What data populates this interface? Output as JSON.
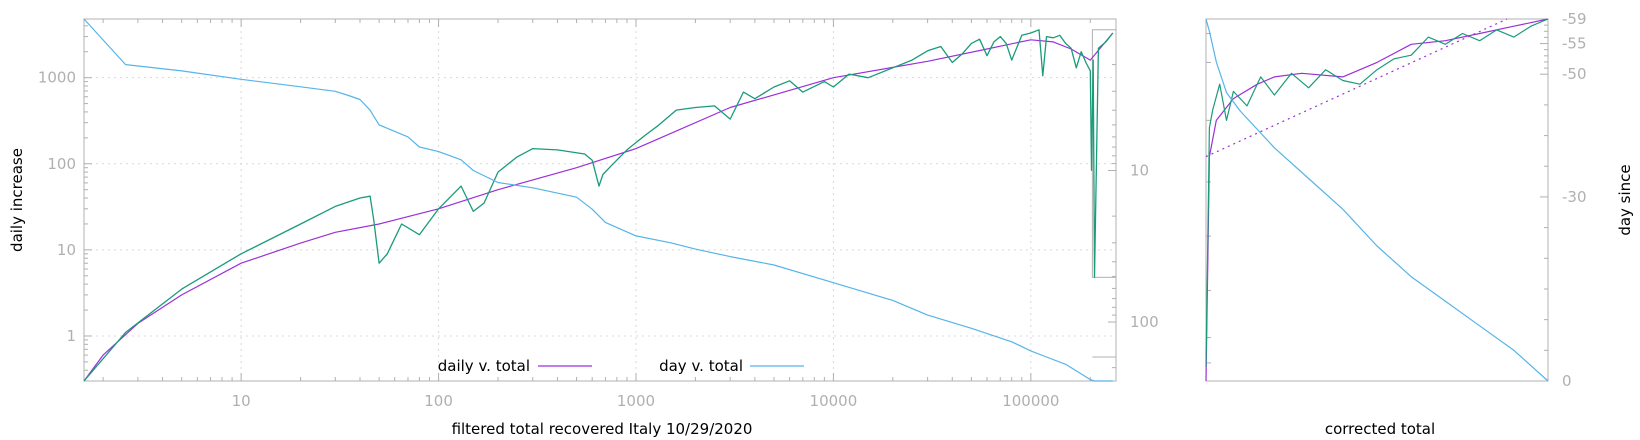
{
  "colors": {
    "daily_fit": "#9b30d9",
    "daily_raw": "#1a9b7a",
    "day": "#56b4e9",
    "axis": "#b0b0b0"
  },
  "chart_data": [
    {
      "type": "line",
      "xlabel": "filtered total recovered Italy 10/29/2020",
      "ylabel": "daily increase",
      "x_scale": "log",
      "y_scale": "log",
      "xlim": [
        1.6,
        270000
      ],
      "ylim": [
        0.3,
        4800
      ],
      "x_ticks": [
        "10",
        "100",
        "1000",
        "10000",
        "100000"
      ],
      "y_ticks": [
        "1",
        "10",
        "100",
        "1000"
      ],
      "y2_ticks": [
        "10",
        "100"
      ],
      "y2_scale": "log",
      "y2_reversed": true,
      "y2lim": [
        1,
        245
      ],
      "grid": true,
      "legend": {
        "placement": "bottom-center",
        "entries": [
          "daily v. total",
          "day v. total"
        ]
      },
      "series": [
        {
          "name": "daily v. total",
          "axis": "y",
          "x": [
            1.6,
            2,
            3,
            5,
            10,
            20,
            30,
            50,
            100,
            200,
            500,
            1000,
            3000,
            10000,
            30000,
            60000,
            100000,
            130000,
            160000,
            200000,
            260000
          ],
          "y": [
            0.3,
            0.6,
            1.4,
            3,
            7,
            12,
            16,
            20,
            30,
            50,
            90,
            150,
            450,
            1000,
            1550,
            2150,
            2750,
            2600,
            2150,
            1600,
            3300
          ]
        },
        {
          "axis": "y",
          "x": [
            1.6,
            2.6,
            5,
            10,
            20,
            30,
            40,
            45,
            47,
            50,
            55,
            65,
            80,
            100,
            130,
            150,
            170,
            200,
            250,
            300,
            400,
            550,
            600,
            650,
            680,
            750,
            900,
            1100,
            1300,
            1600,
            2000,
            2500,
            3000,
            3500,
            4000,
            5000,
            6000,
            7000,
            9000,
            10000,
            12000,
            15000,
            20000,
            25000,
            30000,
            35000,
            40000,
            45000,
            50000,
            55000,
            60000,
            65000,
            70000,
            75000,
            80000,
            90000,
            100000,
            110000,
            115000,
            120000,
            130000,
            140000,
            150000,
            160000,
            170000,
            180000,
            190000,
            200000,
            203000,
            207000,
            210000,
            220000,
            240000,
            260000
          ],
          "y": [
            0.3,
            1.1,
            3.5,
            9,
            20,
            32,
            40,
            42,
            22,
            7,
            9,
            20,
            15,
            30,
            55,
            28,
            35,
            80,
            120,
            150,
            145,
            130,
            110,
            55,
            75,
            95,
            145,
            210,
            280,
            420,
            450,
            470,
            330,
            680,
            570,
            780,
            920,
            680,
            900,
            780,
            1100,
            1000,
            1300,
            1600,
            2050,
            2300,
            1500,
            1900,
            2500,
            2800,
            1800,
            2600,
            3000,
            2500,
            1600,
            3100,
            3300,
            3600,
            1050,
            3000,
            2900,
            3100,
            2500,
            2200,
            1300,
            2000,
            1500,
            1200,
            84,
            1600,
            4.8,
            2200,
            2600,
            3300
          ]
        },
        {
          "name": "day v. total",
          "axis": "y2",
          "x": [
            1.6,
            2.6,
            5,
            10,
            20,
            30,
            35,
            40,
            45,
            50,
            70,
            80,
            100,
            130,
            150,
            200,
            300,
            500,
            600,
            700,
            1000,
            1500,
            2000,
            3000,
            5000,
            10000,
            20000,
            30000,
            50000,
            80000,
            100000,
            120000,
            150000,
            180000,
            200000,
            210000,
            230000,
            260000
          ],
          "y": [
            1,
            2,
            2.2,
            2.5,
            2.8,
            3,
            3.2,
            3.4,
            4,
            5,
            6,
            7,
            7.5,
            8.5,
            10,
            12,
            13,
            15,
            18,
            22,
            27,
            30,
            33,
            37,
            42,
            55,
            72,
            90,
            110,
            135,
            155,
            170,
            190,
            220,
            240,
            270,
            290,
            305
          ]
        }
      ]
    },
    {
      "type": "line",
      "xlabel": "corrected total",
      "ylabel": "day since",
      "y2_ticks": [
        "-59",
        "-55",
        "-50",
        "-30",
        "0"
      ],
      "y2lim": [
        -59,
        0
      ],
      "grid": false,
      "series": [
        {
          "axis": "y",
          "x": [
            0,
            0.01,
            0.03,
            0.08,
            0.15,
            0.2,
            0.28,
            0.4,
            0.5,
            0.6,
            0.7,
            0.8,
            0.9,
            1
          ],
          "y": [
            0,
            0.62,
            0.72,
            0.78,
            0.82,
            0.84,
            0.85,
            0.84,
            0.88,
            0.93,
            0.94,
            0.96,
            0.98,
            1
          ]
        },
        {
          "axis": "y",
          "x": [
            0,
            0.01,
            0.02,
            0.04,
            0.06,
            0.08,
            0.12,
            0.16,
            0.2,
            0.25,
            0.3,
            0.35,
            0.4,
            0.45,
            0.5,
            0.55,
            0.6,
            0.65,
            0.7,
            0.75,
            0.8,
            0.85,
            0.9,
            0.95,
            1
          ],
          "y": [
            0.04,
            0.7,
            0.75,
            0.82,
            0.72,
            0.8,
            0.76,
            0.84,
            0.79,
            0.85,
            0.81,
            0.86,
            0.83,
            0.82,
            0.86,
            0.89,
            0.9,
            0.95,
            0.93,
            0.96,
            0.94,
            0.97,
            0.95,
            0.98,
            1
          ]
        },
        {
          "axis": "y",
          "x": [
            0,
            0.88
          ],
          "y": [
            0.62,
            1
          ]
        },
        {
          "axis": "y2",
          "x": [
            0,
            0.01,
            0.03,
            0.06,
            0.1,
            0.15,
            0.2,
            0.3,
            0.4,
            0.5,
            0.6,
            0.7,
            0.8,
            0.9,
            1
          ],
          "y": [
            -59,
            -57,
            -52,
            -47,
            -44,
            -41,
            -38,
            -33,
            -28,
            -22,
            -17,
            -13,
            -9,
            -5,
            0
          ]
        }
      ]
    }
  ]
}
